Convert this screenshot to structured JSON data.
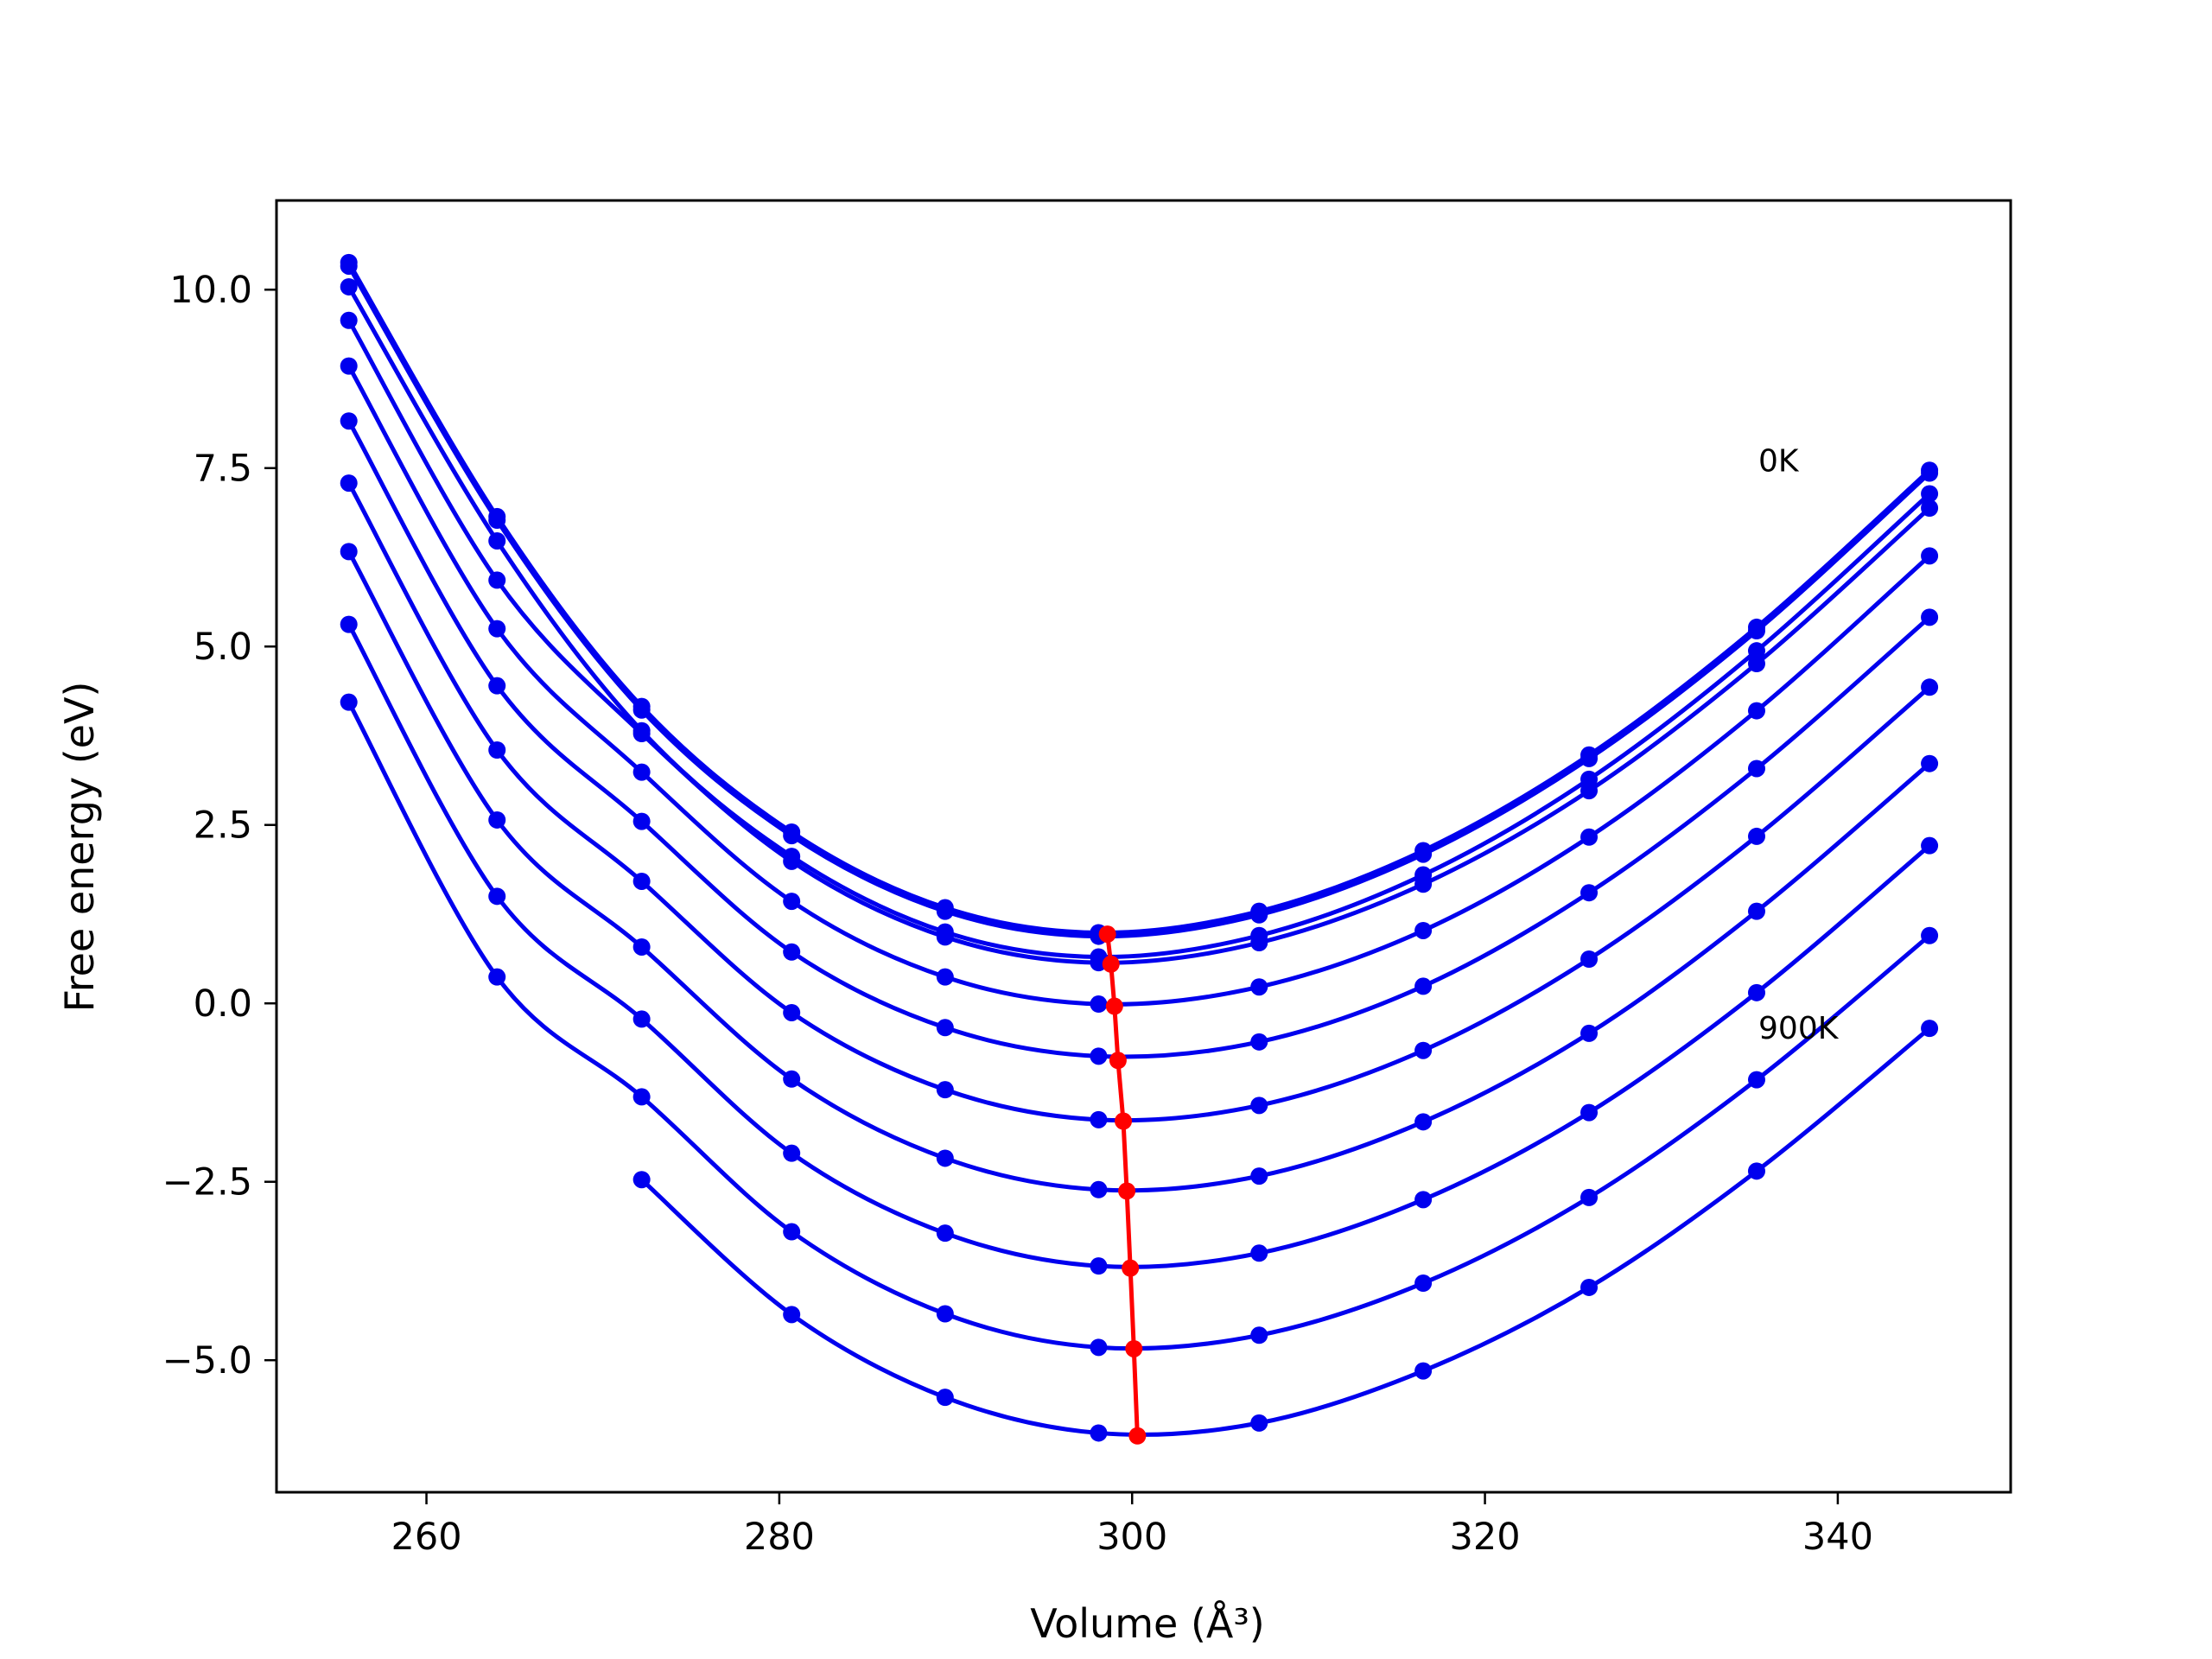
{
  "chart_data": {
    "type": "line",
    "title": "",
    "xlabel": "Volume (Å³)",
    "ylabel": "Free energy (eV)",
    "xlim": [
      251.5,
      349.8
    ],
    "ylim": [
      -6.85,
      11.25
    ],
    "xticks": [
      260,
      280,
      300,
      320,
      340
    ],
    "xtick_labels": [
      "260",
      "280",
      "300",
      "320",
      "340"
    ],
    "yticks": [
      10.0,
      7.5,
      5.0,
      2.5,
      0.0,
      -2.5,
      -5.0
    ],
    "ytick_labels": [
      "10.0",
      "7.5",
      "5.0",
      "2.5",
      "0.0",
      "−2.5",
      "−5.0"
    ],
    "grid": false,
    "legend": false,
    "annotations": [
      {
        "text": "0K",
        "x": 335.5,
        "y": 7.6
      },
      {
        "text": "900K",
        "x": 335.5,
        "y": -0.35
      }
    ],
    "colors": {
      "curves": "#0000ee",
      "minimum_line": "#ff0000"
    },
    "volumes": [
      255.6,
      264.0,
      272.2,
      280.7,
      289.4,
      298.1,
      307.2,
      316.5,
      325.9,
      335.4,
      345.2
    ],
    "series": [
      {
        "values": [
          10.38,
          6.82,
          4.16,
          2.4,
          1.34,
          0.99,
          1.29,
          2.14,
          3.48,
          5.27,
          7.47
        ]
      },
      {
        "values": [
          10.33,
          6.77,
          4.11,
          2.35,
          1.29,
          0.94,
          1.24,
          2.09,
          3.43,
          5.22,
          7.43
        ]
      },
      {
        "values": [
          10.04,
          6.48,
          3.82,
          2.06,
          1.0,
          0.65,
          0.95,
          1.8,
          3.14,
          4.94,
          7.14
        ]
      },
      {
        "values": [
          9.57,
          5.93,
          3.78,
          1.99,
          0.93,
          0.57,
          0.85,
          1.67,
          2.98,
          4.76,
          6.94
        ]
      },
      {
        "values": [
          8.93,
          5.25,
          3.24,
          1.43,
          0.37,
          -0.01,
          0.23,
          1.02,
          2.33,
          4.1,
          6.27
        ]
      },
      {
        "values": [
          8.16,
          4.45,
          2.55,
          0.72,
          -0.34,
          -0.74,
          -0.54,
          0.24,
          1.55,
          3.29,
          5.41
        ]
      },
      {
        "values": [
          7.29,
          3.55,
          1.71,
          -0.13,
          -1.21,
          -1.63,
          -1.43,
          -0.66,
          0.62,
          2.34,
          4.43
        ]
      },
      {
        "values": [
          6.33,
          2.57,
          0.79,
          -1.06,
          -2.17,
          -2.61,
          -2.42,
          -1.66,
          -0.42,
          1.29,
          3.36
        ]
      },
      {
        "values": [
          5.31,
          1.5,
          -0.22,
          -2.1,
          -3.22,
          -3.68,
          -3.5,
          -2.75,
          -1.53,
          0.15,
          2.21
        ]
      },
      {
        "values": [
          4.22,
          0.37,
          -1.31,
          -3.2,
          -4.35,
          -4.82,
          -4.65,
          -3.92,
          -2.72,
          -1.07,
          0.95
        ]
      },
      {
        "values": [
          null,
          null,
          -2.47,
          -4.36,
          -5.52,
          -6.02,
          -5.88,
          -5.15,
          -3.98,
          -2.35,
          -0.35
        ]
      }
    ],
    "minimum_series": {
      "x": [
        298.6,
        298.8,
        299.0,
        299.2,
        299.5,
        299.7,
        299.9,
        300.1,
        300.3
      ],
      "y": [
        0.97,
        0.55,
        -0.04,
        -0.8,
        -1.65,
        -2.63,
        -3.71,
        -4.84,
        -6.06
      ]
    }
  }
}
